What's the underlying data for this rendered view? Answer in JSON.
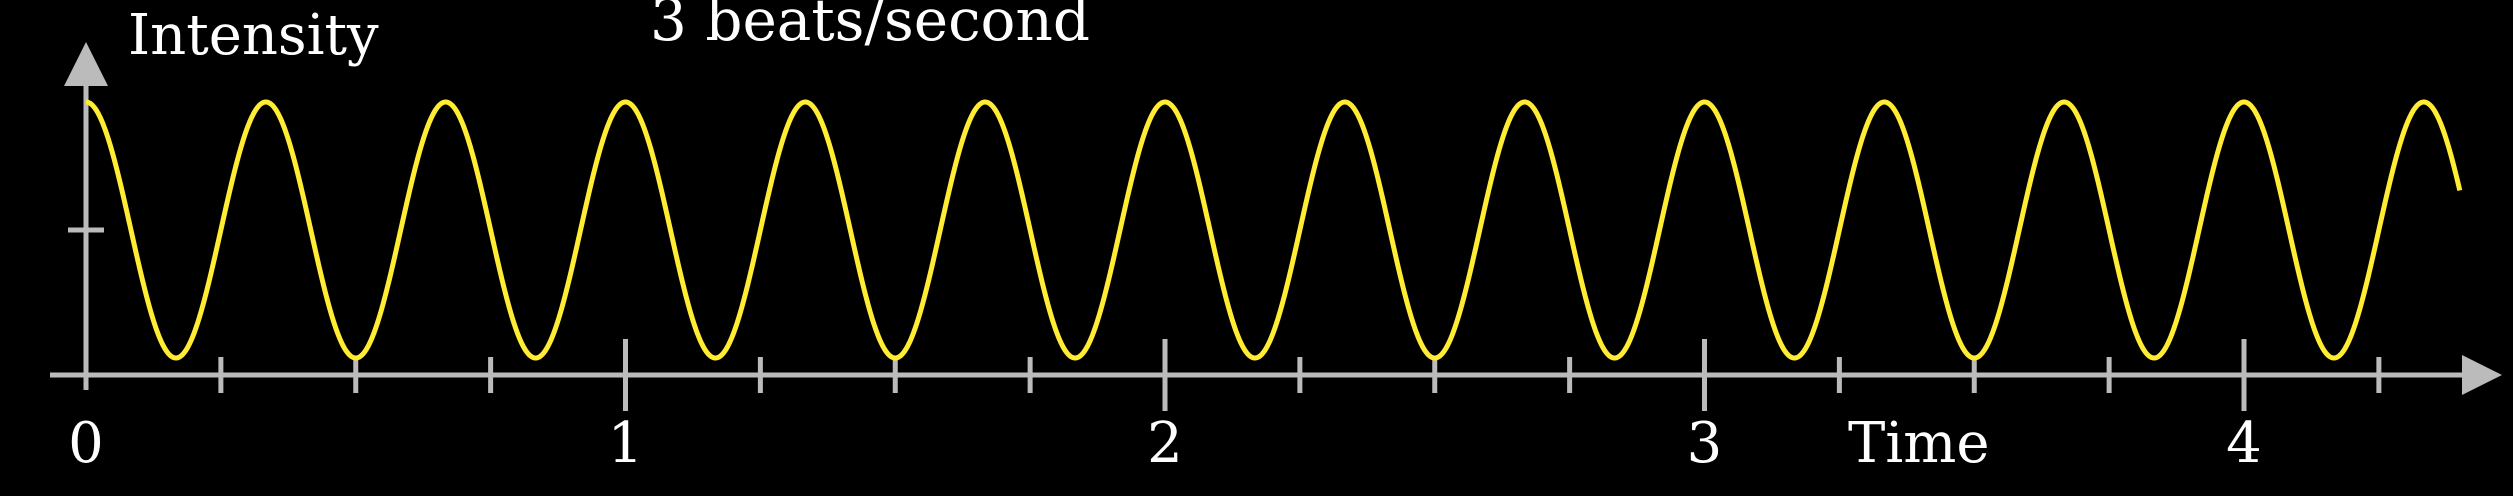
{
  "chart_data": {
    "type": "line",
    "title": "3 beats/second",
    "xlabel": "Time",
    "ylabel": "Intensity",
    "xlim": [
      0,
      4.4
    ],
    "ylim": [
      0,
      1
    ],
    "x_ticks_labeled": [
      {
        "value": 0,
        "label": "0"
      },
      {
        "value": 1,
        "label": "1"
      },
      {
        "value": 2,
        "label": "2"
      },
      {
        "value": 3,
        "label": "3"
      },
      {
        "value": 4,
        "label": "4"
      }
    ],
    "x_minor_tick_step": 0.25,
    "y_ticks": [
      0.5
    ],
    "series": [
      {
        "function": "0.5 + 0.5*cos(2*pi*3*t)",
        "beats_per_second": 3,
        "t_start": 0,
        "t_end": 4.4,
        "min": 0,
        "max": 1
      }
    ],
    "grid": false
  },
  "colors": {
    "background": "#000000",
    "axis": "#bbbbbb",
    "curve": "#ffec33",
    "text": "#ffffff"
  }
}
